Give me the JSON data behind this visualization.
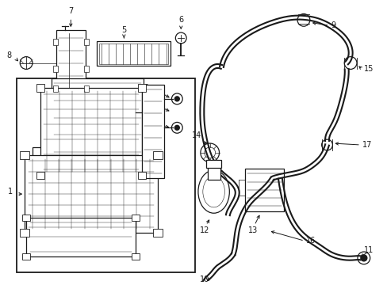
{
  "bg_color": "#ffffff",
  "line_color": "#1a1a1a",
  "figsize": [
    4.89,
    3.6
  ],
  "dpi": 100,
  "lw_hose": 1.5,
  "lw_part": 0.9,
  "lw_thin": 0.5,
  "fontsize": 7.0
}
